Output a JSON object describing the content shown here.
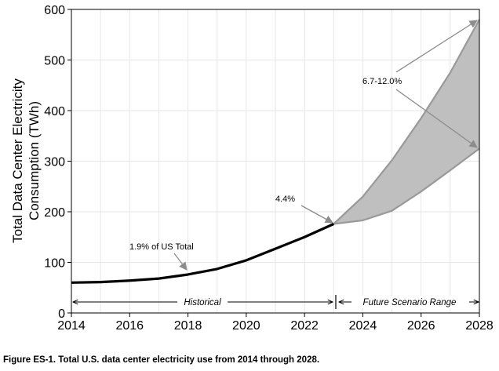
{
  "chart_data": {
    "type": "line",
    "xlim": [
      2014,
      2028
    ],
    "ylim": [
      0,
      600
    ],
    "xticks": [
      "2014",
      "2016",
      "2018",
      "2020",
      "2022",
      "2024",
      "2026",
      "2028"
    ],
    "yticks": [
      "0",
      "100",
      "200",
      "300",
      "400",
      "500",
      "600"
    ],
    "ylabel_line1": "Total Data Center Electricity",
    "ylabel_line2": "Consumption (TWh)",
    "grid": true,
    "series": [
      {
        "kind": "historical-line",
        "x": [
          2014,
          2015,
          2016,
          2017,
          2018,
          2019,
          2020,
          2021,
          2022,
          2023
        ],
        "values": [
          60,
          61,
          64,
          68,
          76,
          87,
          104,
          127,
          150,
          176
        ]
      },
      {
        "kind": "scenario-upper",
        "x": [
          2023,
          2024,
          2025,
          2026,
          2027,
          2028
        ],
        "values": [
          176,
          230,
          302,
          385,
          475,
          580
        ]
      },
      {
        "kind": "scenario-lower",
        "x": [
          2023,
          2024,
          2025,
          2026,
          2027,
          2028
        ],
        "values": [
          176,
          183,
          202,
          240,
          282,
          325
        ]
      }
    ],
    "annotations": {
      "hist_share": "1.9% of US Total",
      "share_2023": "4.4%",
      "scenario_share": "6.7-12.0%",
      "historical": "Historical",
      "future": "Future Scenario Range"
    },
    "colors": {
      "line": "#000000",
      "band_fill": "#bfbfbf",
      "band_edge": "#999999",
      "arrow": "#8c8c8c",
      "grid": "#e6e6e6"
    }
  },
  "caption": "Figure ES-1. Total U.S. data center electricity use from 2014 through 2028."
}
